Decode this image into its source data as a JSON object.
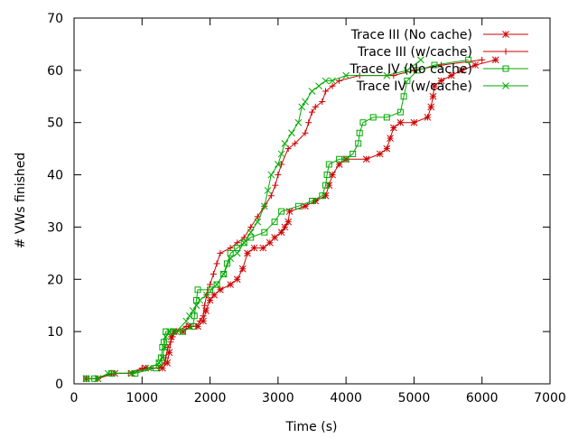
{
  "chart_data": {
    "type": "line",
    "title": "",
    "xlabel": "Time (s)",
    "ylabel": "# VWs finished",
    "xlim": [
      0,
      7000
    ],
    "ylim": [
      0,
      70
    ],
    "x_ticks": [
      0,
      1000,
      2000,
      3000,
      4000,
      5000,
      6000,
      7000
    ],
    "y_ticks": [
      0,
      10,
      20,
      30,
      40,
      50,
      60,
      70
    ],
    "grid": false,
    "legend_position": "top-right",
    "series": [
      {
        "name": "Trace III (No cache)",
        "color": "#cc0000",
        "marker": "asterisk",
        "points": [
          [
            180,
            1
          ],
          [
            350,
            1
          ],
          [
            600,
            2
          ],
          [
            850,
            2
          ],
          [
            1050,
            3
          ],
          [
            1300,
            3
          ],
          [
            1370,
            4
          ],
          [
            1400,
            6
          ],
          [
            1430,
            9
          ],
          [
            1470,
            10
          ],
          [
            1600,
            10
          ],
          [
            1700,
            11
          ],
          [
            1820,
            11
          ],
          [
            1900,
            12
          ],
          [
            1940,
            14
          ],
          [
            2000,
            16
          ],
          [
            2060,
            17
          ],
          [
            2150,
            18
          ],
          [
            2300,
            19
          ],
          [
            2400,
            20
          ],
          [
            2480,
            22
          ],
          [
            2550,
            25
          ],
          [
            2650,
            26
          ],
          [
            2780,
            26
          ],
          [
            2880,
            27
          ],
          [
            2950,
            28
          ],
          [
            3050,
            29
          ],
          [
            3100,
            30
          ],
          [
            3150,
            31
          ],
          [
            3170,
            33
          ],
          [
            3400,
            34
          ],
          [
            3550,
            35
          ],
          [
            3700,
            36
          ],
          [
            3750,
            38
          ],
          [
            3800,
            40
          ],
          [
            3900,
            42
          ],
          [
            4000,
            43
          ],
          [
            4300,
            43
          ],
          [
            4500,
            44
          ],
          [
            4600,
            45
          ],
          [
            4650,
            47
          ],
          [
            4700,
            49
          ],
          [
            4800,
            50
          ],
          [
            5000,
            50
          ],
          [
            5200,
            51
          ],
          [
            5250,
            53
          ],
          [
            5280,
            55
          ],
          [
            5300,
            57
          ],
          [
            5400,
            58
          ],
          [
            5550,
            59
          ],
          [
            5700,
            60
          ],
          [
            5900,
            61
          ],
          [
            6200,
            62
          ]
        ]
      },
      {
        "name": "Trace III (w/cache)",
        "color": "#cc0000",
        "marker": "plus",
        "points": [
          [
            180,
            1
          ],
          [
            320,
            1
          ],
          [
            550,
            2
          ],
          [
            800,
            2
          ],
          [
            1000,
            3
          ],
          [
            1250,
            3
          ],
          [
            1330,
            4
          ],
          [
            1350,
            5
          ],
          [
            1380,
            7
          ],
          [
            1420,
            8
          ],
          [
            1450,
            9
          ],
          [
            1500,
            10
          ],
          [
            1650,
            11
          ],
          [
            1800,
            11
          ],
          [
            1850,
            12
          ],
          [
            1900,
            13
          ],
          [
            1920,
            15
          ],
          [
            1950,
            17
          ],
          [
            2000,
            19
          ],
          [
            2050,
            21
          ],
          [
            2100,
            23
          ],
          [
            2150,
            25
          ],
          [
            2300,
            26
          ],
          [
            2400,
            27
          ],
          [
            2500,
            28
          ],
          [
            2600,
            30
          ],
          [
            2700,
            32
          ],
          [
            2800,
            34
          ],
          [
            2900,
            36
          ],
          [
            2960,
            38
          ],
          [
            3000,
            40
          ],
          [
            3050,
            42
          ],
          [
            3150,
            45
          ],
          [
            3250,
            46
          ],
          [
            3400,
            48
          ],
          [
            3450,
            50
          ],
          [
            3500,
            52
          ],
          [
            3550,
            53
          ],
          [
            3650,
            54
          ],
          [
            3700,
            56
          ],
          [
            3800,
            57
          ],
          [
            3900,
            58
          ],
          [
            4200,
            59
          ],
          [
            4700,
            59
          ],
          [
            5000,
            60
          ],
          [
            5400,
            61
          ],
          [
            6000,
            62
          ]
        ]
      },
      {
        "name": "Trace IV (No cache)",
        "color": "#00aa00",
        "marker": "square",
        "points": [
          [
            180,
            1
          ],
          [
            300,
            1
          ],
          [
            550,
            2
          ],
          [
            900,
            2
          ],
          [
            1200,
            3
          ],
          [
            1250,
            4
          ],
          [
            1280,
            5
          ],
          [
            1300,
            7
          ],
          [
            1320,
            8
          ],
          [
            1350,
            10
          ],
          [
            1450,
            10
          ],
          [
            1600,
            10
          ],
          [
            1750,
            11
          ],
          [
            1770,
            13
          ],
          [
            1800,
            16
          ],
          [
            1820,
            18
          ],
          [
            2000,
            18
          ],
          [
            2100,
            19
          ],
          [
            2200,
            21
          ],
          [
            2250,
            23
          ],
          [
            2300,
            25
          ],
          [
            2400,
            26
          ],
          [
            2500,
            27
          ],
          [
            2600,
            28
          ],
          [
            2800,
            29
          ],
          [
            2950,
            31
          ],
          [
            3050,
            33
          ],
          [
            3300,
            34
          ],
          [
            3500,
            35
          ],
          [
            3650,
            36
          ],
          [
            3700,
            38
          ],
          [
            3720,
            40
          ],
          [
            3750,
            42
          ],
          [
            3900,
            43
          ],
          [
            4000,
            43
          ],
          [
            4100,
            44
          ],
          [
            4180,
            46
          ],
          [
            4200,
            48
          ],
          [
            4250,
            50
          ],
          [
            4400,
            51
          ],
          [
            4600,
            51
          ],
          [
            4800,
            52
          ],
          [
            4850,
            55
          ],
          [
            4900,
            58
          ],
          [
            5050,
            60
          ],
          [
            5300,
            61
          ],
          [
            5800,
            62
          ]
        ]
      },
      {
        "name": "Trace IV (w/cache)",
        "color": "#00aa00",
        "marker": "cross",
        "points": [
          [
            180,
            1
          ],
          [
            350,
            1
          ],
          [
            500,
            2
          ],
          [
            850,
            2
          ],
          [
            1100,
            3
          ],
          [
            1250,
            4
          ],
          [
            1300,
            5
          ],
          [
            1330,
            7
          ],
          [
            1350,
            9
          ],
          [
            1400,
            10
          ],
          [
            1500,
            10
          ],
          [
            1650,
            12
          ],
          [
            1700,
            13
          ],
          [
            1750,
            14
          ],
          [
            1800,
            15
          ],
          [
            1850,
            16
          ],
          [
            1950,
            17
          ],
          [
            2100,
            19
          ],
          [
            2200,
            21
          ],
          [
            2300,
            24
          ],
          [
            2400,
            25
          ],
          [
            2500,
            27
          ],
          [
            2600,
            29
          ],
          [
            2700,
            31
          ],
          [
            2800,
            34
          ],
          [
            2850,
            37
          ],
          [
            2900,
            40
          ],
          [
            3000,
            42
          ],
          [
            3050,
            44
          ],
          [
            3100,
            46
          ],
          [
            3200,
            48
          ],
          [
            3300,
            50
          ],
          [
            3350,
            53
          ],
          [
            3400,
            54
          ],
          [
            3500,
            56
          ],
          [
            3600,
            57
          ],
          [
            3700,
            58
          ],
          [
            3800,
            58
          ],
          [
            4000,
            59
          ],
          [
            4600,
            59
          ],
          [
            4900,
            60
          ],
          [
            5100,
            62
          ]
        ]
      }
    ]
  }
}
